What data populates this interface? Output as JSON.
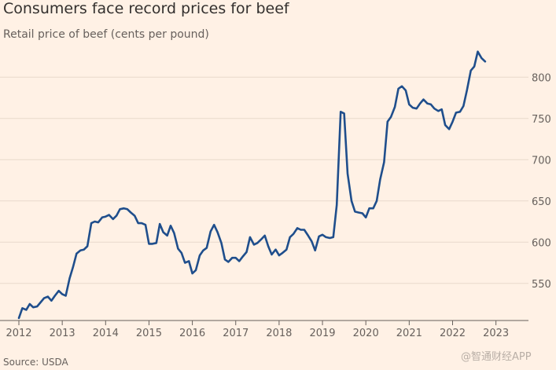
{
  "title": "Consumers face record prices for beef",
  "subtitle": "Retail price of beef (cents per pound)",
  "source": "Source: USDA",
  "watermark": "@智通财经APP",
  "colors": {
    "background": "#fff1e5",
    "line": "#1f4e8c",
    "grid": "#e8d9cc",
    "axis": "#66605c"
  },
  "chart_data": {
    "type": "line",
    "title": "Consumers face record prices for beef",
    "xlabel": "",
    "ylabel": "Retail price of beef (cents per pound)",
    "xlim": [
      2012.0,
      2023.75
    ],
    "ylim": [
      505,
      825
    ],
    "y_ticks": [
      550,
      600,
      650,
      700,
      750,
      800
    ],
    "x_ticks": [
      2012,
      2013,
      2014,
      2015,
      2016,
      2017,
      2018,
      2019,
      2020,
      2021,
      2022,
      2023
    ],
    "x_tick_labels": [
      "2012",
      "2013",
      "2014",
      "2015",
      "2016",
      "2017",
      "2018",
      "2019",
      "2020",
      "2021",
      "2022",
      "2023"
    ],
    "grid": true,
    "series": [
      {
        "name": "Retail price of beef",
        "points": [
          [
            2012.0,
            508
          ],
          [
            2012.08,
            520
          ],
          [
            2012.17,
            518
          ],
          [
            2012.25,
            525
          ],
          [
            2012.33,
            521
          ],
          [
            2012.42,
            522
          ],
          [
            2012.5,
            527
          ],
          [
            2012.58,
            532
          ],
          [
            2012.67,
            534
          ],
          [
            2012.75,
            529
          ],
          [
            2012.83,
            535
          ],
          [
            2012.92,
            541
          ],
          [
            2013.0,
            537
          ],
          [
            2013.08,
            535
          ],
          [
            2013.17,
            556
          ],
          [
            2013.25,
            570
          ],
          [
            2013.33,
            586
          ],
          [
            2013.42,
            590
          ],
          [
            2013.5,
            591
          ],
          [
            2013.58,
            595
          ],
          [
            2013.67,
            623
          ],
          [
            2013.75,
            625
          ],
          [
            2013.83,
            624
          ],
          [
            2013.92,
            630
          ],
          [
            2014.0,
            631
          ],
          [
            2014.08,
            633
          ],
          [
            2014.17,
            628
          ],
          [
            2014.25,
            632
          ],
          [
            2014.33,
            640
          ],
          [
            2014.42,
            641
          ],
          [
            2014.5,
            640
          ],
          [
            2014.58,
            636
          ],
          [
            2014.67,
            632
          ],
          [
            2014.75,
            623
          ],
          [
            2014.83,
            623
          ],
          [
            2014.92,
            621
          ],
          [
            2015.0,
            598
          ],
          [
            2015.08,
            598
          ],
          [
            2015.17,
            599
          ],
          [
            2015.25,
            622
          ],
          [
            2015.33,
            612
          ],
          [
            2015.42,
            608
          ],
          [
            2015.5,
            620
          ],
          [
            2015.58,
            611
          ],
          [
            2015.67,
            592
          ],
          [
            2015.75,
            587
          ],
          [
            2015.83,
            575
          ],
          [
            2015.92,
            577
          ],
          [
            2016.0,
            562
          ],
          [
            2016.08,
            566
          ],
          [
            2016.17,
            584
          ],
          [
            2016.25,
            590
          ],
          [
            2016.33,
            593
          ],
          [
            2016.42,
            613
          ],
          [
            2016.5,
            621
          ],
          [
            2016.58,
            612
          ],
          [
            2016.67,
            599
          ],
          [
            2016.75,
            579
          ],
          [
            2016.83,
            576
          ],
          [
            2016.92,
            581
          ],
          [
            2017.0,
            581
          ],
          [
            2017.08,
            577
          ],
          [
            2017.17,
            583
          ],
          [
            2017.25,
            588
          ],
          [
            2017.33,
            606
          ],
          [
            2017.42,
            597
          ],
          [
            2017.5,
            599
          ],
          [
            2017.58,
            603
          ],
          [
            2017.67,
            608
          ],
          [
            2017.75,
            595
          ],
          [
            2017.83,
            585
          ],
          [
            2017.92,
            591
          ],
          [
            2018.0,
            584
          ],
          [
            2018.08,
            587
          ],
          [
            2018.17,
            591
          ],
          [
            2018.25,
            606
          ],
          [
            2018.33,
            610
          ],
          [
            2018.42,
            617
          ],
          [
            2018.5,
            615
          ],
          [
            2018.58,
            615
          ],
          [
            2018.67,
            608
          ],
          [
            2018.75,
            601
          ],
          [
            2018.83,
            590
          ],
          [
            2018.92,
            607
          ],
          [
            2019.0,
            609
          ],
          [
            2019.08,
            606
          ],
          [
            2019.17,
            605
          ],
          [
            2019.25,
            606
          ],
          [
            2019.33,
            645
          ],
          [
            2019.42,
            758
          ],
          [
            2019.5,
            756
          ],
          [
            2019.58,
            683
          ],
          [
            2019.67,
            650
          ],
          [
            2019.75,
            637
          ],
          [
            2019.83,
            636
          ],
          [
            2019.92,
            635
          ],
          [
            2020.0,
            630
          ],
          [
            2020.08,
            641
          ],
          [
            2020.17,
            641
          ],
          [
            2020.25,
            650
          ],
          [
            2020.33,
            676
          ],
          [
            2020.42,
            697
          ],
          [
            2020.5,
            746
          ],
          [
            2020.58,
            752
          ],
          [
            2020.67,
            764
          ],
          [
            2020.75,
            786
          ],
          [
            2020.83,
            789
          ],
          [
            2020.92,
            784
          ],
          [
            2021.0,
            767
          ],
          [
            2021.08,
            763
          ],
          [
            2021.17,
            762
          ],
          [
            2021.25,
            768
          ],
          [
            2021.33,
            773
          ],
          [
            2021.42,
            768
          ],
          [
            2021.5,
            767
          ],
          [
            2021.58,
            762
          ],
          [
            2021.67,
            759
          ],
          [
            2021.75,
            761
          ],
          [
            2021.83,
            742
          ],
          [
            2021.92,
            737
          ],
          [
            2022.0,
            746
          ],
          [
            2022.08,
            757
          ],
          [
            2022.17,
            758
          ],
          [
            2022.25,
            765
          ],
          [
            2022.33,
            784
          ],
          [
            2022.42,
            808
          ],
          [
            2022.5,
            813
          ],
          [
            2022.58,
            831
          ],
          [
            2022.67,
            823
          ],
          [
            2022.75,
            819
          ]
        ]
      }
    ]
  }
}
